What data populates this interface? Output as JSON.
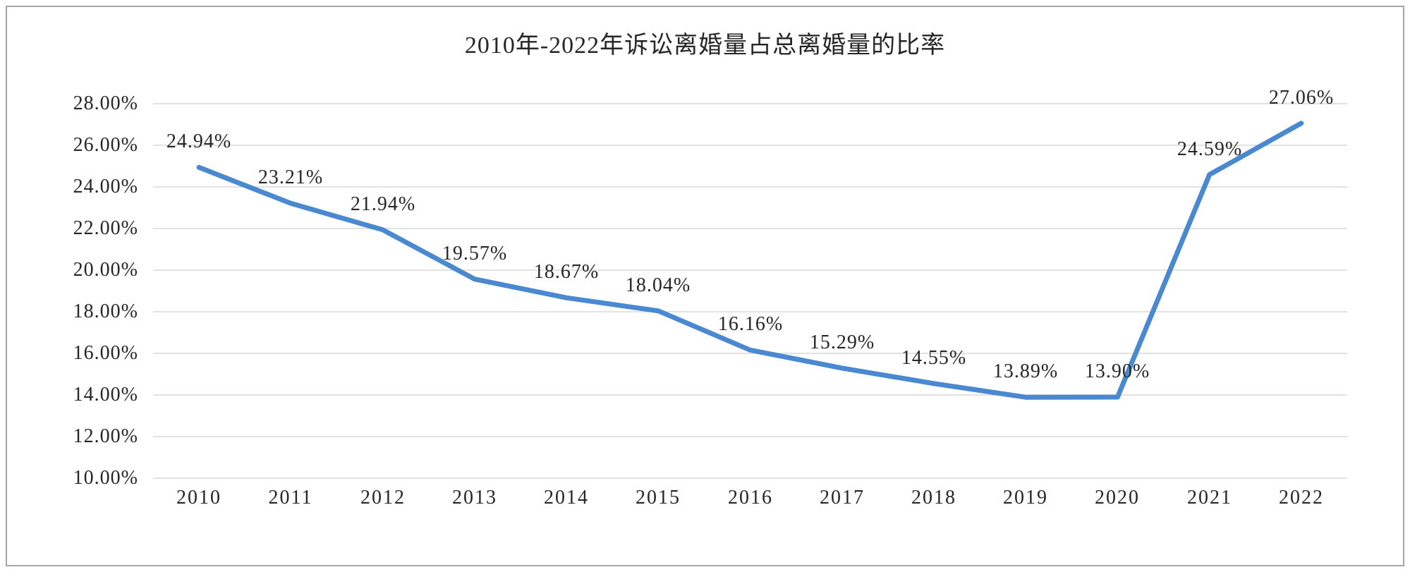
{
  "window": {
    "background_color": "#FFFFFF",
    "border_color": "#A6A6A6"
  },
  "chart_data": {
    "type": "line",
    "title": "2010年-2022年诉讼离婚量占总离婚量的比率",
    "categories": [
      "2010",
      "2011",
      "2012",
      "2013",
      "2014",
      "2015",
      "2016",
      "2017",
      "2018",
      "2019",
      "2020",
      "2021",
      "2022"
    ],
    "values": [
      24.94,
      23.21,
      21.94,
      19.57,
      18.67,
      18.04,
      16.16,
      15.29,
      14.55,
      13.89,
      13.9,
      24.59,
      27.06
    ],
    "data_labels": [
      "24.94%",
      "23.21%",
      "21.94%",
      "19.57%",
      "18.67%",
      "18.04%",
      "16.16%",
      "15.29%",
      "14.55%",
      "13.89%",
      "13.90%",
      "24.59%",
      "27.06%"
    ],
    "xlabel": "",
    "ylabel": "",
    "y_axis": {
      "min": 10,
      "max": 28,
      "step": 2,
      "tick_labels": [
        "28.00%",
        "26.00%",
        "24.00%",
        "22.00%",
        "20.00%",
        "18.00%",
        "16.00%",
        "14.00%",
        "12.00%",
        "10.00%"
      ]
    },
    "grid": true,
    "legend_position": "none",
    "line_color": "#4A89D0",
    "gridline_color": "#D9D9D9",
    "text_color": "#262626"
  }
}
